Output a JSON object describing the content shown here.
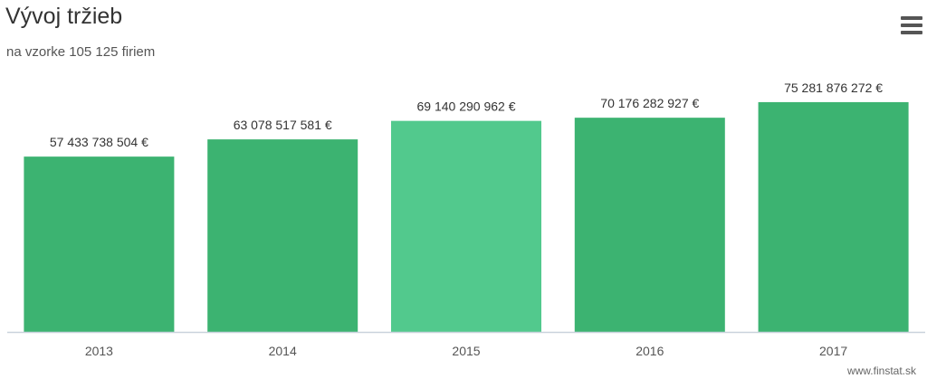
{
  "header": {
    "title": "Vývoj tržieb",
    "subtitle": "na vzorke 105 125 firiem",
    "menu_icon": "hamburger-menu-icon"
  },
  "credit": "www.finstat.sk",
  "colors": {
    "bar": "#3cb371",
    "bar_highlight": "#52c98d",
    "axis": "#c9d2dc"
  },
  "chart_data": {
    "type": "bar",
    "title": "Vývoj tržieb",
    "subtitle": "na vzorke 105 125 firiem",
    "categories": [
      "2013",
      "2014",
      "2015",
      "2016",
      "2017"
    ],
    "values": [
      57433738504,
      63078517581,
      69140290962,
      70176282927,
      75281876272
    ],
    "data_labels": [
      "57 433 738 504 €",
      "63 078 517 581 €",
      "69 140 290 962 €",
      "70 176 282 927 €",
      "75 281 876 272 €"
    ],
    "highlighted_category": "2015",
    "ylim": [
      0,
      80000000000
    ],
    "grid": false,
    "legend": "none"
  }
}
